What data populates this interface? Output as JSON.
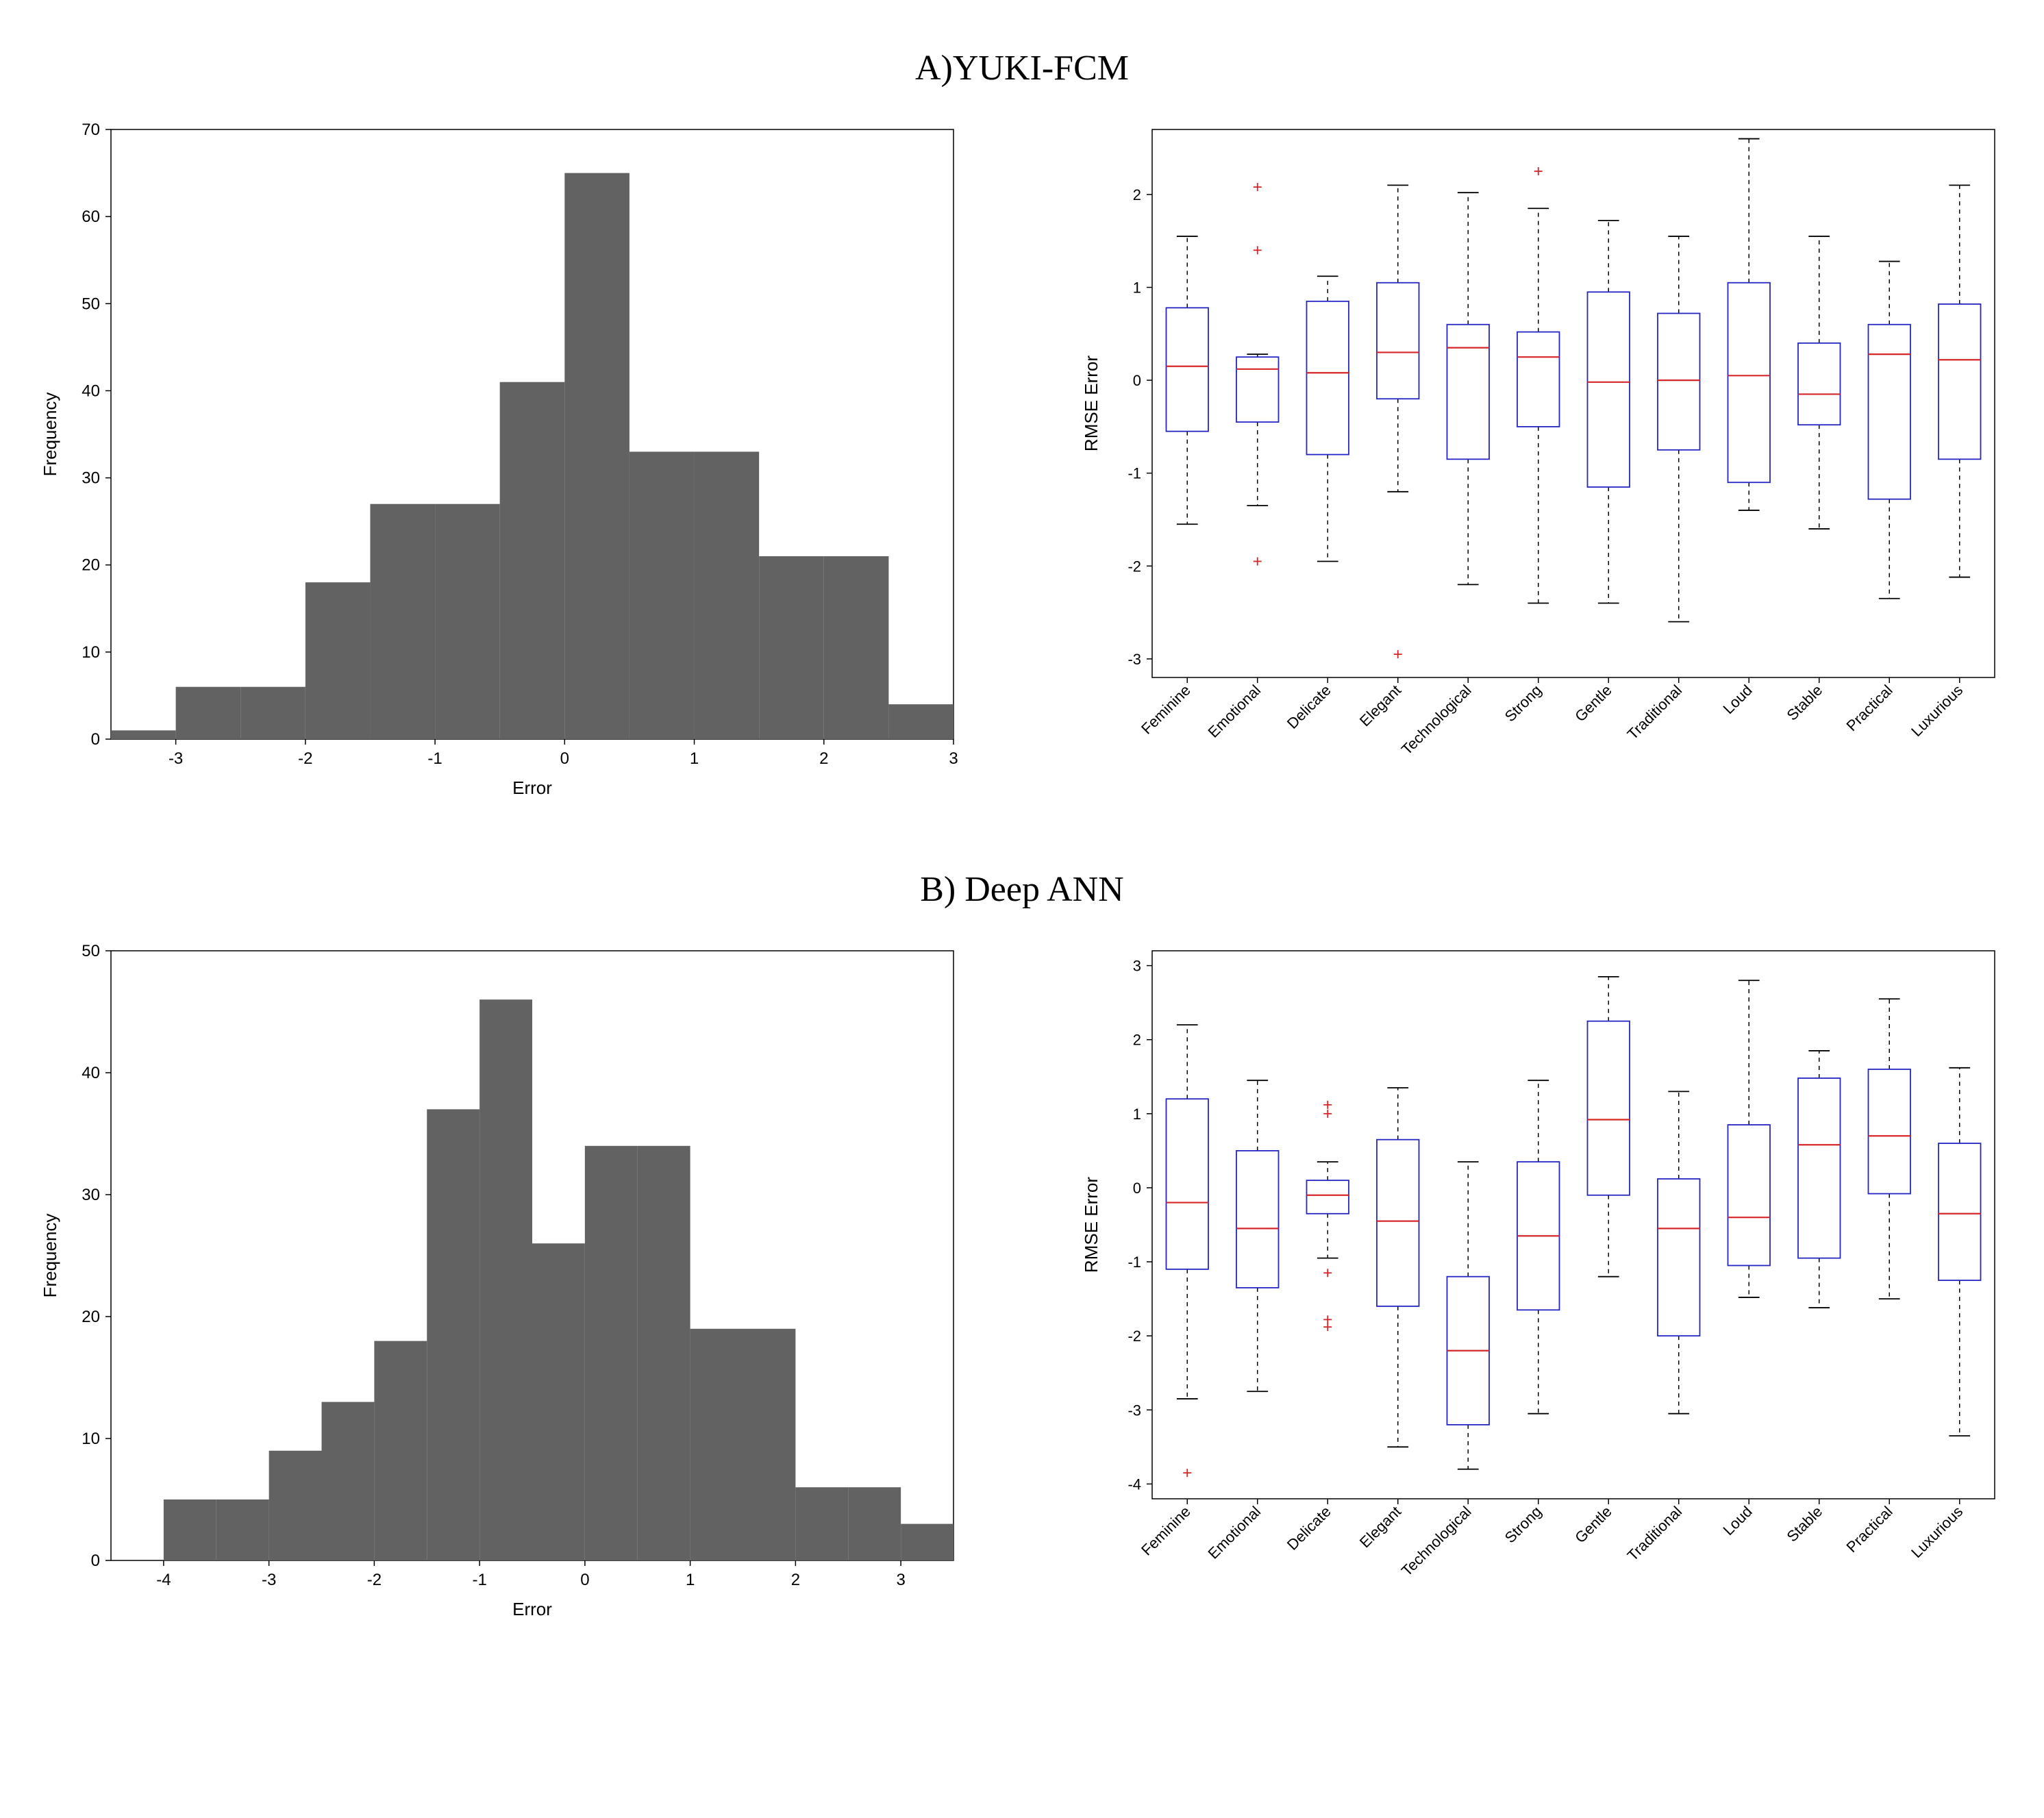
{
  "sectionA": {
    "title": "A)YUKI-FCM"
  },
  "sectionB": {
    "title": "B) Deep ANN"
  },
  "histA": {
    "type": "histogram",
    "xlabel": "Error",
    "ylabel": "Frequency",
    "xlim": [
      -3.5,
      3.0
    ],
    "ylim": [
      0,
      70
    ],
    "xticks": [
      -3,
      -2,
      -1,
      0,
      1,
      2,
      3
    ],
    "yticks": [
      0,
      10,
      20,
      30,
      40,
      50,
      60,
      70
    ],
    "bin_edges": [
      -3.5,
      -3.0,
      -2.5,
      -2.0,
      -1.5,
      -1.0,
      -0.5,
      0.0,
      0.5,
      1.0,
      1.5,
      2.0,
      2.5,
      3.0
    ],
    "counts": [
      1,
      6,
      6,
      18,
      27,
      27,
      41,
      65,
      33,
      33,
      21,
      21,
      4
    ],
    "bar_color": "#626262",
    "axis_color": "#000000",
    "background_color": "#ffffff",
    "label_fontsize": 26,
    "tick_fontsize": 24
  },
  "boxA": {
    "type": "boxplot",
    "ylabel": "RMSE Error",
    "ylim": [
      -3.2,
      2.7
    ],
    "yticks": [
      -3,
      -2,
      -1,
      0,
      1,
      2
    ],
    "categories": [
      "Feminine",
      "Emotional",
      "Delicate",
      "Elegant",
      "Technological",
      "Strong",
      "Gentle",
      "Traditional",
      "Loud",
      "Stable",
      "Practical",
      "Luxurious"
    ],
    "boxes": [
      {
        "min": -1.55,
        "q1": -0.55,
        "median": 0.15,
        "q3": 0.78,
        "max": 1.55,
        "outliers": []
      },
      {
        "min": -1.35,
        "q1": -0.45,
        "median": 0.12,
        "q3": 0.25,
        "max": 0.28,
        "outliers": [
          2.08,
          1.4,
          -1.95
        ]
      },
      {
        "min": -1.95,
        "q1": -0.8,
        "median": 0.08,
        "q3": 0.85,
        "max": 1.12,
        "outliers": []
      },
      {
        "min": -1.2,
        "q1": -0.2,
        "median": 0.3,
        "q3": 1.05,
        "max": 2.1,
        "outliers": [
          -2.95
        ]
      },
      {
        "min": -2.2,
        "q1": -0.85,
        "median": 0.35,
        "q3": 0.6,
        "max": 2.02,
        "outliers": []
      },
      {
        "min": -2.4,
        "q1": -0.5,
        "median": 0.25,
        "q3": 0.52,
        "max": 1.85,
        "outliers": [
          2.25
        ]
      },
      {
        "min": -2.4,
        "q1": -1.15,
        "median": -0.02,
        "q3": 0.95,
        "max": 1.72,
        "outliers": []
      },
      {
        "min": -2.6,
        "q1": -0.75,
        "median": 0.0,
        "q3": 0.72,
        "max": 1.55,
        "outliers": []
      },
      {
        "min": -1.4,
        "q1": -1.1,
        "median": 0.05,
        "q3": 1.05,
        "max": 2.6,
        "outliers": []
      },
      {
        "min": -1.6,
        "q1": -0.48,
        "median": -0.15,
        "q3": 0.4,
        "max": 1.55,
        "outliers": []
      },
      {
        "min": -2.35,
        "q1": -1.28,
        "median": 0.28,
        "q3": 0.6,
        "max": 1.28,
        "outliers": []
      },
      {
        "min": -2.12,
        "q1": -0.85,
        "median": 0.22,
        "q3": 0.82,
        "max": 2.1,
        "outliers": []
      }
    ],
    "box_color": "#2626c4",
    "median_color": "#d62728",
    "whisker_color": "#000000",
    "outlier_color": "#d62728",
    "axis_color": "#000000",
    "background_color": "#ffffff",
    "label_fontsize": 26,
    "tick_fontsize": 22
  },
  "histB": {
    "type": "histogram",
    "xlabel": "Error",
    "ylabel": "Frequency",
    "xlim": [
      -4.5,
      3.5
    ],
    "ylim": [
      0,
      50
    ],
    "xticks": [
      -4,
      -3,
      -2,
      -1,
      0,
      1,
      2,
      3
    ],
    "yticks": [
      0,
      10,
      20,
      30,
      40,
      50
    ],
    "bin_edges": [
      -4.5,
      -4.0,
      -3.5,
      -3.0,
      -2.5,
      -2.0,
      -1.5,
      -1.0,
      -0.5,
      0.0,
      0.5,
      1.0,
      1.5,
      2.0,
      2.5,
      3.0,
      3.5
    ],
    "counts": [
      0,
      5,
      5,
      9,
      13,
      18,
      37,
      46,
      26,
      34,
      34,
      19,
      19,
      6,
      6,
      3
    ],
    "bar_color": "#626262",
    "axis_color": "#000000",
    "background_color": "#ffffff",
    "label_fontsize": 26,
    "tick_fontsize": 24
  },
  "boxB": {
    "type": "boxplot",
    "ylabel": "RMSE Error",
    "ylim": [
      -4.2,
      3.2
    ],
    "yticks": [
      -4,
      -3,
      -2,
      -1,
      0,
      1,
      2,
      3
    ],
    "categories": [
      "Feminine",
      "Emotional",
      "Delicate",
      "Elegant",
      "Technological",
      "Strong",
      "Gentle",
      "Traditional",
      "Loud",
      "Stable",
      "Practical",
      "Luxurious"
    ],
    "boxes": [
      {
        "min": -2.85,
        "q1": -1.1,
        "median": -0.2,
        "q3": 1.2,
        "max": 2.2,
        "outliers": [
          -3.85
        ]
      },
      {
        "min": -2.75,
        "q1": -1.35,
        "median": -0.55,
        "q3": 0.5,
        "max": 1.45,
        "outliers": []
      },
      {
        "min": -0.95,
        "q1": -0.35,
        "median": -0.1,
        "q3": 0.1,
        "max": 0.35,
        "outliers": [
          1.12,
          1.0,
          -1.15,
          -1.78,
          -1.88
        ]
      },
      {
        "min": -3.5,
        "q1": -1.6,
        "median": -0.45,
        "q3": 0.65,
        "max": 1.35,
        "outliers": []
      },
      {
        "min": -3.8,
        "q1": -3.2,
        "median": -2.2,
        "q3": -1.2,
        "max": 0.35,
        "outliers": []
      },
      {
        "min": -3.05,
        "q1": -1.65,
        "median": -0.65,
        "q3": 0.35,
        "max": 1.45,
        "outliers": []
      },
      {
        "min": -1.2,
        "q1": -0.1,
        "median": 0.92,
        "q3": 2.25,
        "max": 2.85,
        "outliers": []
      },
      {
        "min": -3.05,
        "q1": -2.0,
        "median": -0.55,
        "q3": 0.12,
        "max": 1.3,
        "outliers": []
      },
      {
        "min": -1.48,
        "q1": -1.05,
        "median": -0.4,
        "q3": 0.85,
        "max": 2.8,
        "outliers": []
      },
      {
        "min": -1.62,
        "q1": -0.95,
        "median": 0.58,
        "q3": 1.48,
        "max": 1.85,
        "outliers": []
      },
      {
        "min": -1.5,
        "q1": -0.08,
        "median": 0.7,
        "q3": 1.6,
        "max": 2.55,
        "outliers": []
      },
      {
        "min": -3.35,
        "q1": -1.25,
        "median": -0.35,
        "q3": 0.6,
        "max": 1.62,
        "outliers": []
      }
    ],
    "box_color": "#2626c4",
    "median_color": "#d62728",
    "whisker_color": "#000000",
    "outlier_color": "#d62728",
    "axis_color": "#000000",
    "background_color": "#ffffff",
    "label_fontsize": 26,
    "tick_fontsize": 22
  }
}
